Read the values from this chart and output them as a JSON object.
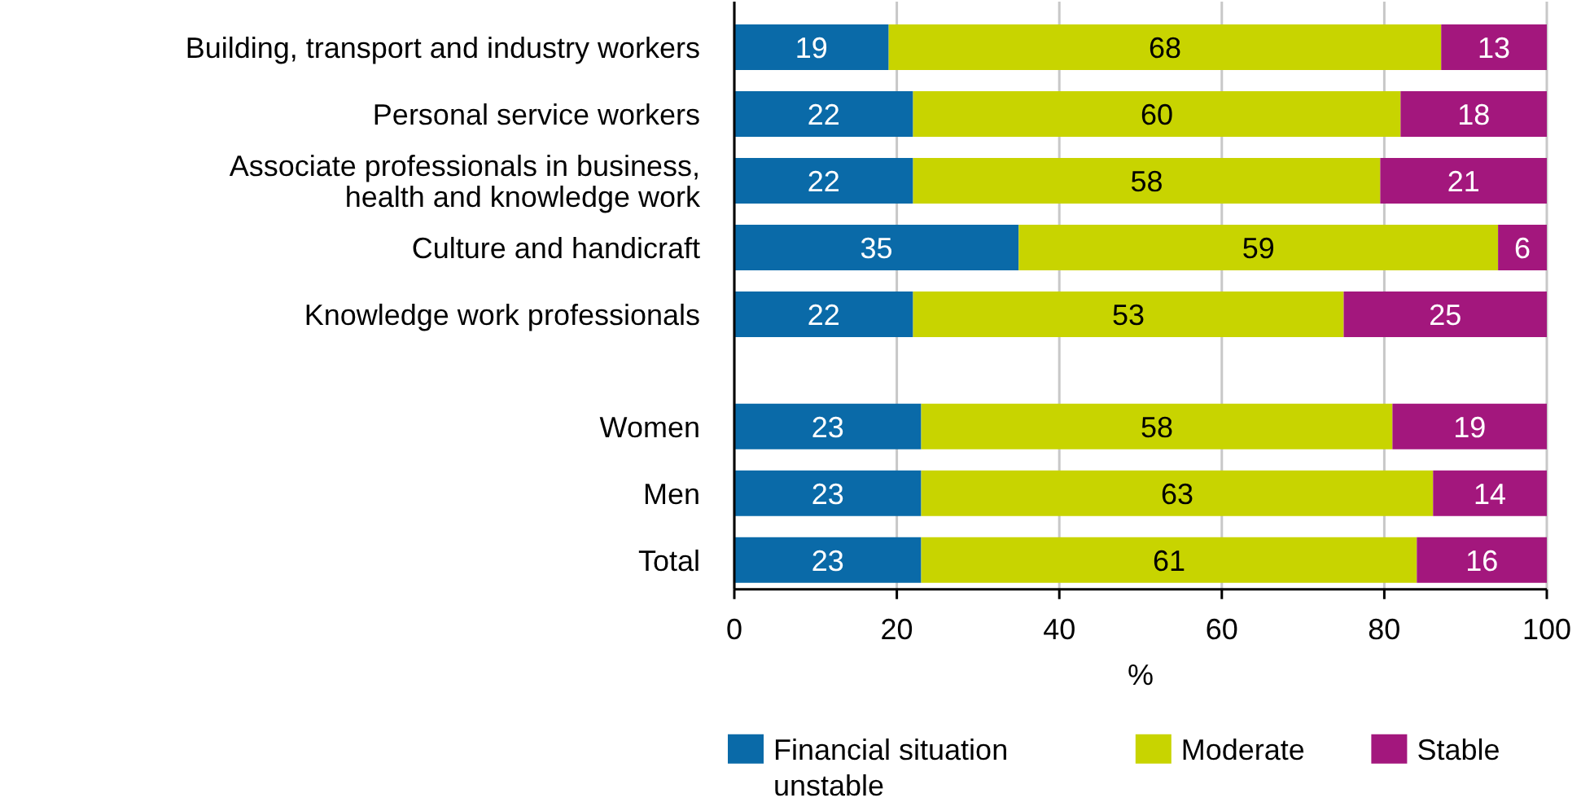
{
  "chart_data": {
    "type": "bar",
    "orientation": "horizontal",
    "stacked": true,
    "xlabel": "%",
    "categories": [
      "Building, transport and industry workers",
      "Personal service workers",
      "Associate professionals in business, health and knowledge work",
      "Culture and handicraft",
      "Knowledge work professionals",
      null,
      "Women",
      "Men",
      "Total"
    ],
    "series": [
      {
        "name": "Financial situation unstable",
        "color": "#0a6aa8",
        "values": [
          19,
          22,
          22,
          35,
          22,
          null,
          23,
          23,
          23
        ],
        "value_labels": [
          "19",
          "22",
          "22",
          "35",
          "22",
          null,
          "23",
          "23",
          "23"
        ]
      },
      {
        "name": "Moderate",
        "color": "#c8d400",
        "values": [
          68,
          60,
          57.5,
          59,
          53,
          null,
          58,
          63,
          61
        ],
        "value_labels": [
          "68",
          "60",
          "58",
          "59",
          "53",
          null,
          "58",
          "63",
          "61"
        ]
      },
      {
        "name": "Stable",
        "color": "#a3177d",
        "values": [
          13,
          18,
          20.5,
          6,
          25,
          null,
          19,
          14,
          16
        ],
        "value_labels": [
          "13",
          "18",
          "21",
          "6",
          "25",
          null,
          "19",
          "14",
          "16"
        ]
      }
    ],
    "xlim": [
      0,
      100
    ],
    "xticks": [
      0,
      20,
      40,
      60,
      80,
      100
    ],
    "grid": "x",
    "legend": "bottom"
  }
}
